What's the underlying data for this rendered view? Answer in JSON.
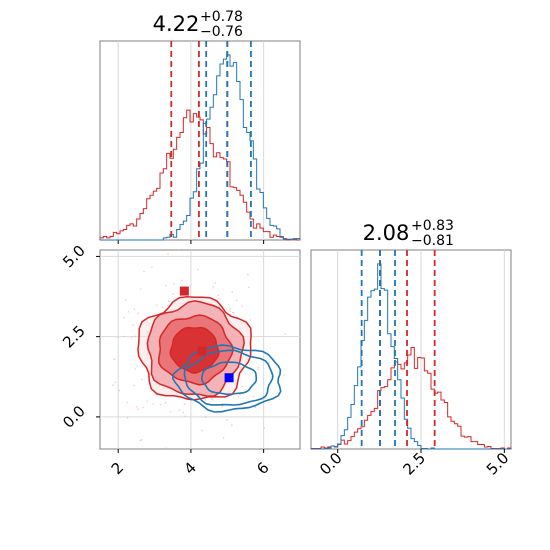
{
  "chart_data": [
    {
      "type": "histogram",
      "panel": "top-left",
      "title": {
        "value": "4.22",
        "plus": "+0.78",
        "minus": "−0.76"
      },
      "xlim": [
        1.5,
        7.0
      ],
      "grid": true,
      "series": [
        {
          "color": "#d62728",
          "mean": 4.1,
          "sd": 0.85,
          "quantile_lines": [
            3.46,
            4.22,
            5.0
          ]
        },
        {
          "color": "#1f77b4",
          "mean": 5.0,
          "sd": 0.55,
          "quantile_lines": [
            4.42,
            5.0,
            5.65
          ]
        }
      ]
    },
    {
      "type": "histogram",
      "panel": "bottom-right",
      "title": {
        "value": "2.08",
        "plus": "+0.83",
        "minus": "−0.81"
      },
      "xlim": [
        -0.8,
        5.2
      ],
      "xticks": [
        "0.0",
        "2.5",
        "5.0"
      ],
      "grid": true,
      "series": [
        {
          "color": "#d62728",
          "mean": 2.15,
          "sd": 0.85,
          "quantile_lines": [
            1.27,
            2.08,
            2.91
          ]
        },
        {
          "color": "#1f77b4",
          "mean": 1.2,
          "sd": 0.45,
          "quantile_lines": [
            0.72,
            1.27,
            1.72
          ]
        }
      ]
    },
    {
      "type": "contour",
      "panel": "bottom-left",
      "xlim": [
        1.5,
        7.0
      ],
      "ylim": [
        -1.0,
        5.2
      ],
      "xticks": [
        "2",
        "4",
        "6"
      ],
      "yticks": [
        "0.0",
        "2.5",
        "5.0"
      ],
      "grid": true,
      "series": [
        {
          "color": "#d62728",
          "center": [
            4.1,
            2.1
          ],
          "radii": [
            [
              0.65,
              0.7
            ],
            [
              1.0,
              1.05
            ],
            [
              1.3,
              1.45
            ],
            [
              1.55,
              1.6
            ]
          ],
          "filled": true
        },
        {
          "color": "#1f77b4",
          "center": [
            5.05,
            1.2
          ],
          "radii": [
            [
              0.75,
              0.5
            ],
            [
              1.2,
              0.85
            ],
            [
              1.45,
              1.0
            ]
          ],
          "filled": false
        }
      ],
      "markers": [
        {
          "x": 3.82,
          "y": 3.92,
          "color": "#d62728"
        },
        {
          "x": 4.3,
          "y": 2.05,
          "color": "#d62728"
        },
        {
          "x": 5.05,
          "y": 1.22,
          "color": "#0000ff"
        }
      ]
    }
  ]
}
